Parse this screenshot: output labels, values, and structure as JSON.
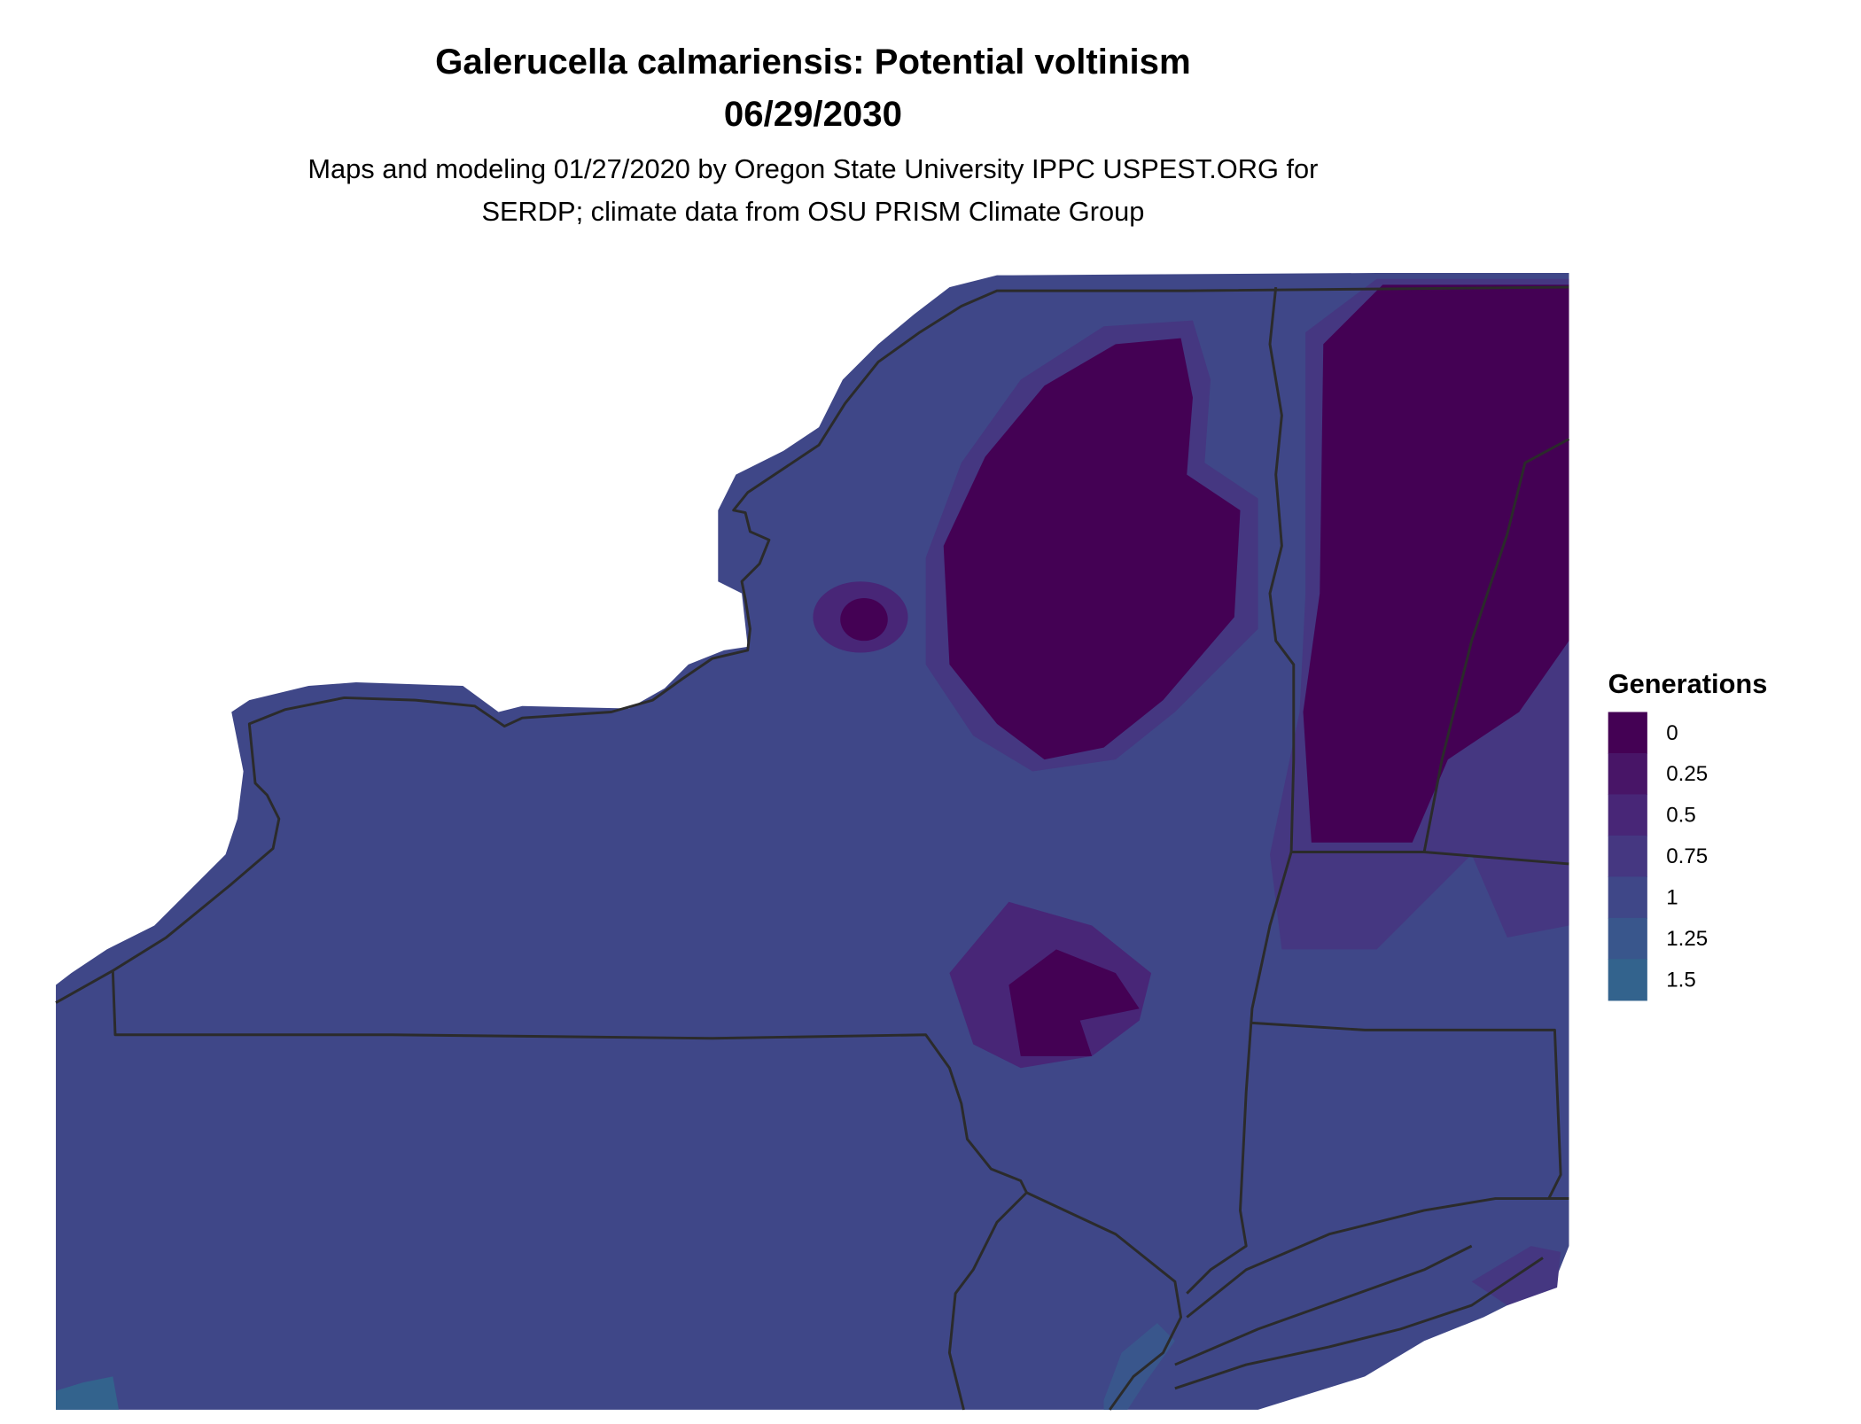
{
  "title": {
    "line1": "Galerucella calmariensis: Potential voltinism",
    "line2": "06/29/2030"
  },
  "subtitle": {
    "line1": "Maps and modeling 01/27/2020 by Oregon State University IPPC USPEST.ORG for",
    "line2": "SERDP; climate data from OSU PRISM Climate Group"
  },
  "legend": {
    "title": "Generations",
    "items": [
      {
        "label": "0",
        "color": "#440154"
      },
      {
        "label": "0.25",
        "color": "#481567"
      },
      {
        "label": "0.5",
        "color": "#482677"
      },
      {
        "label": "0.75",
        "color": "#453781"
      },
      {
        "label": "1",
        "color": "#3F4788"
      },
      {
        "label": "1.25",
        "color": "#39568C"
      },
      {
        "label": "1.5",
        "color": "#33638D"
      }
    ]
  }
}
